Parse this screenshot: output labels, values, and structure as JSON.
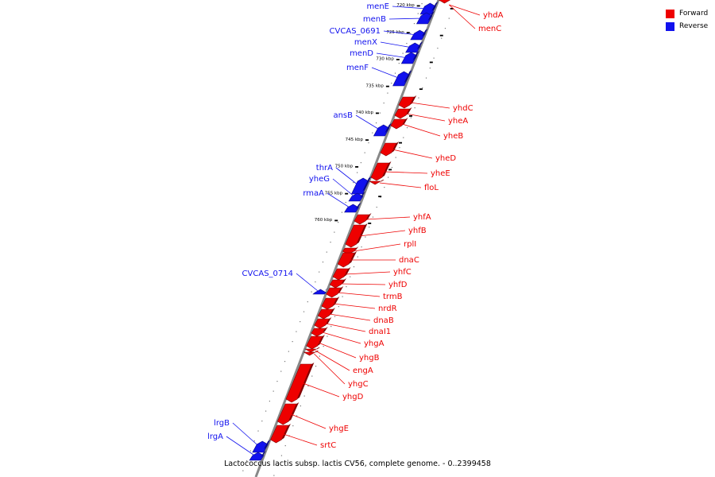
{
  "legend": {
    "forward": {
      "label": "Forward",
      "color": "#ee0000"
    },
    "reverse": {
      "label": "Reverse",
      "color": "#1111ee"
    }
  },
  "caption": "Lactococcus lactis subsp. lactis CV56, complete genome. - 0..2399458",
  "ticks": [
    {
      "label": "720 kbp",
      "kbp": 720
    },
    {
      "label": "725 kbp",
      "kbp": 725
    },
    {
      "label": "730 kbp",
      "kbp": 730
    },
    {
      "label": "735 kbp",
      "kbp": 735
    },
    {
      "label": "740 kbp",
      "kbp": 740
    },
    {
      "label": "745 kbp",
      "kbp": 745
    },
    {
      "label": "750 kbp",
      "kbp": 750
    },
    {
      "label": "755 kbp",
      "kbp": 755
    },
    {
      "label": "760 kbp",
      "kbp": 760
    }
  ],
  "genes": [
    {
      "name": "yhdA",
      "strand": "forward"
    },
    {
      "name": "menC",
      "strand": "forward"
    },
    {
      "name": "menE",
      "strand": "reverse"
    },
    {
      "name": "menB",
      "strand": "reverse"
    },
    {
      "name": "CVCAS_0691",
      "strand": "reverse"
    },
    {
      "name": "menX",
      "strand": "reverse"
    },
    {
      "name": "menD",
      "strand": "reverse"
    },
    {
      "name": "menF",
      "strand": "reverse"
    },
    {
      "name": "yhdC",
      "strand": "forward"
    },
    {
      "name": "yheA",
      "strand": "forward"
    },
    {
      "name": "yheB",
      "strand": "forward"
    },
    {
      "name": "ansB",
      "strand": "reverse"
    },
    {
      "name": "yheD",
      "strand": "forward"
    },
    {
      "name": "yheE",
      "strand": "forward"
    },
    {
      "name": "floL",
      "strand": "forward"
    },
    {
      "name": "thrA",
      "strand": "reverse"
    },
    {
      "name": "yheG",
      "strand": "reverse"
    },
    {
      "name": "rmaA",
      "strand": "reverse"
    },
    {
      "name": "yhfA",
      "strand": "forward"
    },
    {
      "name": "yhfB",
      "strand": "forward"
    },
    {
      "name": "rplI",
      "strand": "forward"
    },
    {
      "name": "dnaC",
      "strand": "forward"
    },
    {
      "name": "yhfC",
      "strand": "forward"
    },
    {
      "name": "yhfD",
      "strand": "forward"
    },
    {
      "name": "CVCAS_0714",
      "strand": "reverse"
    },
    {
      "name": "trmB",
      "strand": "forward"
    },
    {
      "name": "nrdR",
      "strand": "forward"
    },
    {
      "name": "dnaB",
      "strand": "forward"
    },
    {
      "name": "dnaI1",
      "strand": "forward"
    },
    {
      "name": "yhgA",
      "strand": "forward"
    },
    {
      "name": "yhgB",
      "strand": "forward"
    },
    {
      "name": "engA",
      "strand": "forward"
    },
    {
      "name": "yhgC",
      "strand": "forward"
    },
    {
      "name": "yhgD",
      "strand": "forward"
    },
    {
      "name": "yhgE",
      "strand": "forward"
    },
    {
      "name": "srtC",
      "strand": "forward"
    },
    {
      "name": "lrgB",
      "strand": "reverse"
    },
    {
      "name": "lrgA",
      "strand": "reverse"
    }
  ]
}
